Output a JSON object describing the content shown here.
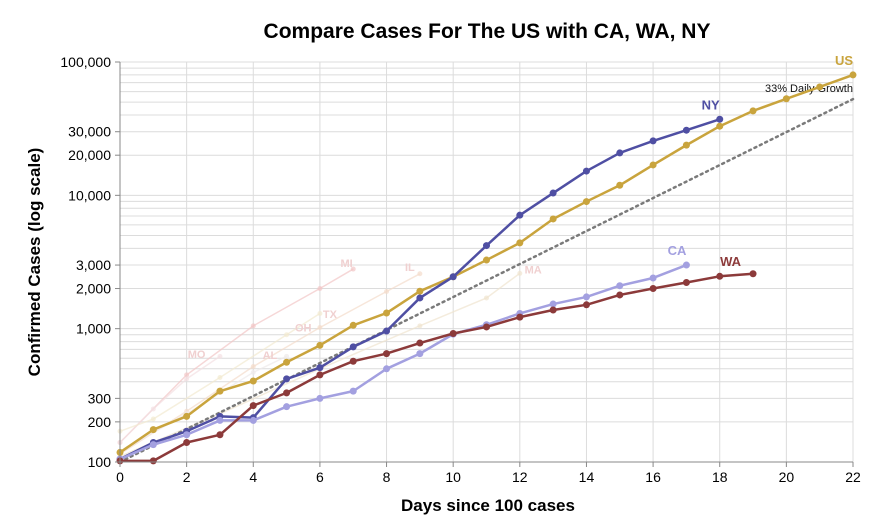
{
  "chart_data": {
    "type": "line",
    "title": "Compare Cases For The US with CA, WA, NY",
    "xlabel": "Days since 100 cases",
    "ylabel": "Confirmed Cases (log scale)",
    "xlim": [
      0,
      22
    ],
    "ylim": [
      100,
      100000
    ],
    "yscale": "log",
    "x_ticks": [
      "0",
      "2",
      "4",
      "6",
      "8",
      "10",
      "12",
      "14",
      "16",
      "18",
      "20",
      "22"
    ],
    "y_ticks": [
      {
        "value": 100,
        "label": "100"
      },
      {
        "value": 200,
        "label": "200"
      },
      {
        "value": 300,
        "label": "300"
      },
      {
        "value": 1000,
        "label": "1,000"
      },
      {
        "value": 2000,
        "label": "2,000"
      },
      {
        "value": 3000,
        "label": "3,000"
      },
      {
        "value": 10000,
        "label": "10,000"
      },
      {
        "value": 20000,
        "label": "20,000"
      },
      {
        "value": 30000,
        "label": "30,000"
      },
      {
        "value": 100000,
        "label": "100,000"
      }
    ],
    "series": [
      {
        "name": "US",
        "color": "#c9a43d",
        "label_pos": "end-above",
        "x": [
          0,
          1,
          2,
          3,
          4,
          5,
          6,
          7,
          8,
          9,
          10,
          11,
          12,
          13,
          14,
          15,
          16,
          17,
          18,
          19,
          20,
          21,
          22
        ],
        "values": [
          118,
          175,
          220,
          340,
          405,
          560,
          750,
          1060,
          1310,
          1910,
          2450,
          3270,
          4400,
          6650,
          8980,
          11900,
          16900,
          23800,
          33000,
          43000,
          53000,
          65000,
          80000
        ]
      },
      {
        "name": "NY",
        "color": "#4f4fa3",
        "label_pos": "end-above",
        "x": [
          0,
          1,
          2,
          3,
          4,
          5,
          6,
          7,
          8,
          9,
          10,
          11,
          12,
          13,
          14,
          15,
          16,
          17,
          18
        ],
        "values": [
          105,
          140,
          170,
          220,
          215,
          420,
          510,
          730,
          960,
          1700,
          2450,
          4200,
          7100,
          10400,
          15200,
          20800,
          25600,
          30800,
          37200
        ]
      },
      {
        "name": "CA",
        "color": "#a3a0e0",
        "label_pos": "end-above",
        "x": [
          0,
          1,
          2,
          3,
          4,
          5,
          6,
          7,
          8,
          9,
          10,
          11,
          12,
          13,
          14,
          15,
          16,
          17
        ],
        "values": [
          105,
          135,
          160,
          205,
          205,
          260,
          300,
          340,
          500,
          650,
          910,
          1070,
          1300,
          1530,
          1730,
          2100,
          2400,
          3000
        ]
      },
      {
        "name": "WA",
        "color": "#8c3a3a",
        "label_pos": "end-above-left",
        "x": [
          0,
          1,
          2,
          3,
          4,
          5,
          6,
          7,
          8,
          9,
          10,
          11,
          12,
          13,
          14,
          15,
          16,
          17,
          18,
          19
        ],
        "values": [
          102,
          102,
          140,
          160,
          265,
          330,
          450,
          570,
          650,
          780,
          920,
          1030,
          1220,
          1380,
          1510,
          1790,
          2000,
          2220,
          2470,
          2580
        ]
      }
    ],
    "reference_line": {
      "name": "33% Daily Growth",
      "color": "#7a7a7a",
      "x": [
        0,
        22
      ],
      "values": [
        100,
        52700
      ]
    },
    "background_series": [
      {
        "name": "MI",
        "color": "#f2c6c6",
        "x": [
          0,
          2,
          4,
          6,
          7
        ],
        "values": [
          140,
          450,
          1050,
          2000,
          2800
        ]
      },
      {
        "name": "IL",
        "color": "#f3dccb",
        "x": [
          0,
          2,
          4,
          6,
          8,
          9
        ],
        "values": [
          115,
          240,
          520,
          1020,
          1900,
          2580
        ]
      },
      {
        "name": "MA",
        "color": "#f0e4cf",
        "x": [
          0,
          3,
          6,
          9,
          11,
          12
        ],
        "values": [
          110,
          230,
          500,
          1050,
          1700,
          2600
        ]
      },
      {
        "name": "MO",
        "color": "#f4dfe2",
        "x": [
          0,
          1,
          2,
          3
        ],
        "values": [
          140,
          250,
          420,
          620
        ]
      },
      {
        "name": "TX",
        "color": "#f2ead0",
        "x": [
          0,
          1,
          3,
          5,
          6
        ],
        "values": [
          170,
          210,
          430,
          900,
          1300
        ]
      },
      {
        "name": "OH",
        "color": "#eeeaea",
        "x": [
          0,
          2,
          4,
          5
        ],
        "values": [
          120,
          230,
          470,
          620
        ]
      }
    ],
    "background_labels": [
      {
        "text": "MI",
        "x": 6.8,
        "y": 2900
      },
      {
        "text": "IL",
        "x": 8.7,
        "y": 2700
      },
      {
        "text": "MA",
        "x": 12.4,
        "y": 2600
      },
      {
        "text": "MO",
        "x": 2.3,
        "y": 600
      },
      {
        "text": "AL",
        "x": 4.5,
        "y": 590
      },
      {
        "text": "TX",
        "x": 6.3,
        "y": 1200
      },
      {
        "text": "OH",
        "x": 5.5,
        "y": 950
      }
    ]
  }
}
